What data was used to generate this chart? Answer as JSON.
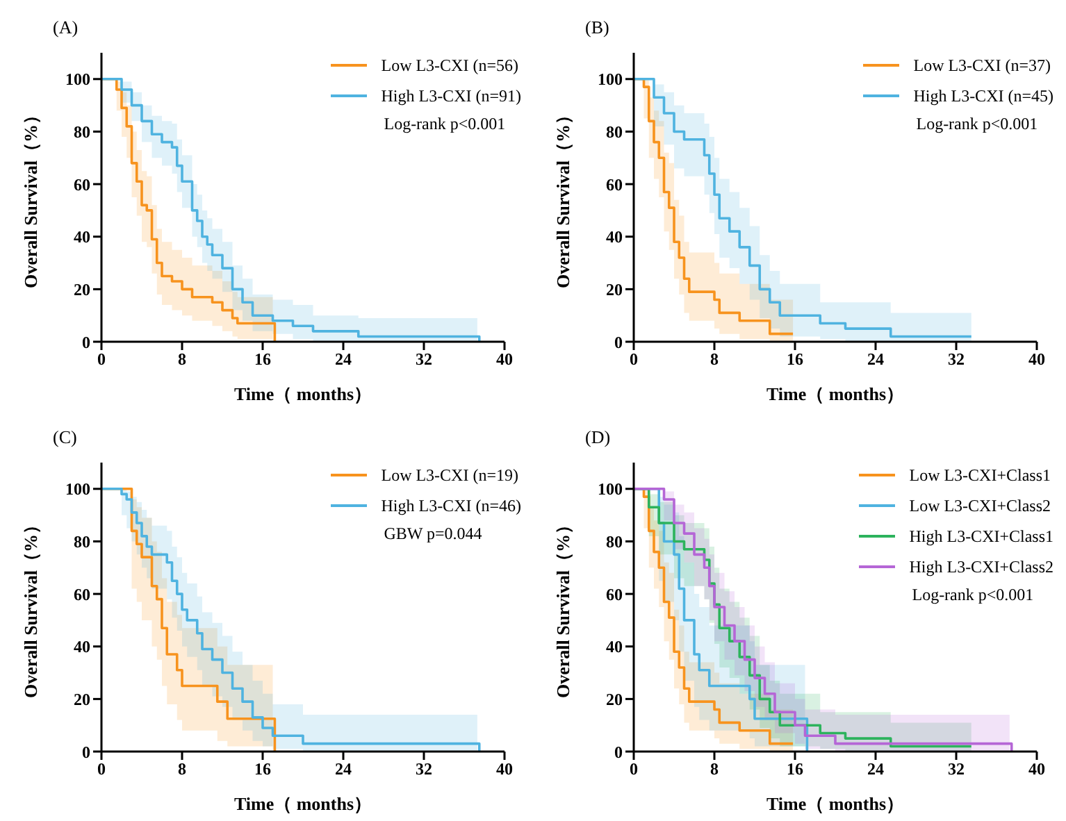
{
  "chart_data": [
    {
      "type": "step",
      "title": "(A)",
      "xlabel": "Time（ months）",
      "ylabel": "Overall Survival（%）",
      "xlim": [
        0,
        40
      ],
      "xticks": [
        0,
        8,
        16,
        24,
        32,
        40
      ],
      "ylim": [
        0,
        110
      ],
      "yticks": [
        0,
        20,
        40,
        60,
        80,
        100
      ],
      "legend": "top right",
      "annotations": [
        "Log-rank p<0.001"
      ],
      "series": [
        {
          "name": "Low L3-CXI (n=56)",
          "color": "#f7931e",
          "x": [
            0,
            1.5,
            2,
            2.5,
            3,
            3.5,
            4,
            4.5,
            5,
            5.5,
            6,
            7,
            8,
            9,
            11,
            12,
            13,
            13.5,
            17,
            17.2
          ],
          "values": [
            100,
            96,
            89,
            82,
            68,
            61,
            52,
            50,
            39,
            30,
            25,
            23,
            20,
            17,
            15,
            12,
            9,
            7,
            7,
            0
          ],
          "lower": [
            100,
            88,
            78,
            70,
            55,
            48,
            38,
            36,
            26,
            18,
            14,
            12,
            10,
            8,
            6,
            4,
            2,
            1,
            1,
            null
          ],
          "upper": [
            100,
            99,
            95,
            90,
            80,
            73,
            65,
            63,
            52,
            43,
            38,
            35,
            32,
            29,
            27,
            23,
            19,
            17,
            17,
            null
          ]
        },
        {
          "name": "High L3-CXI (n=91)",
          "color": "#4fb3e0",
          "x": [
            0,
            1.5,
            2,
            3,
            4,
            5,
            6,
            7,
            7.5,
            8,
            9,
            9.5,
            10,
            10.5,
            11,
            12,
            13,
            14,
            15,
            17,
            19,
            21,
            25.5,
            37.3,
            37.5
          ],
          "values": [
            100,
            100,
            96,
            90,
            84,
            79,
            76,
            74,
            67,
            61,
            50,
            46,
            40,
            37,
            33,
            28,
            20,
            15,
            10,
            8,
            6,
            4,
            2,
            2,
            0
          ],
          "lower": [
            100,
            100,
            91,
            84,
            76,
            70,
            67,
            64,
            57,
            51,
            40,
            36,
            30,
            27,
            24,
            19,
            12,
            8,
            4,
            3,
            1,
            0,
            0,
            0,
            null
          ],
          "upper": [
            100,
            100,
            99,
            95,
            90,
            86,
            84,
            83,
            77,
            71,
            60,
            56,
            50,
            47,
            43,
            38,
            29,
            24,
            18,
            16,
            14,
            10,
            9,
            9,
            null
          ]
        }
      ]
    },
    {
      "type": "step",
      "title": "(B)",
      "xlabel": "Time（ months）",
      "ylabel": "Overall Survival（%）",
      "xlim": [
        0,
        40
      ],
      "xticks": [
        0,
        8,
        16,
        24,
        32,
        40
      ],
      "ylim": [
        0,
        110
      ],
      "yticks": [
        0,
        20,
        40,
        60,
        80,
        100
      ],
      "legend": "top right",
      "annotations": [
        "Log-rank p<0.001"
      ],
      "series": [
        {
          "name": "Low L3-CXI (n=37)",
          "color": "#f7931e",
          "x": [
            0,
            1,
            1.5,
            2,
            2.5,
            3,
            3.5,
            4,
            4.5,
            5,
            5.5,
            8,
            8.5,
            10.5,
            13.5,
            15.8
          ],
          "values": [
            100,
            97,
            84,
            76,
            70,
            57,
            51,
            38,
            32,
            24,
            19,
            16,
            11,
            8,
            3,
            3
          ],
          "lower": [
            100,
            85,
            70,
            62,
            55,
            42,
            35,
            24,
            18,
            11,
            8,
            5,
            3,
            1,
            0,
            0
          ],
          "upper": [
            100,
            100,
            93,
            88,
            84,
            72,
            68,
            54,
            48,
            38,
            34,
            30,
            26,
            22,
            16,
            16
          ]
        },
        {
          "name": "High L3-CXI (n=45)",
          "color": "#4fb3e0",
          "x": [
            0,
            1.5,
            2,
            3,
            4,
            5,
            6.5,
            7,
            7.5,
            8,
            8.5,
            9.5,
            10.5,
            11.5,
            12.5,
            13.5,
            14.5,
            18.5,
            21,
            25.5,
            33.5
          ],
          "values": [
            100,
            100,
            93,
            87,
            80,
            77,
            77,
            71,
            64,
            56,
            47,
            42,
            36,
            29,
            20,
            15,
            10,
            7,
            5,
            2,
            2
          ],
          "lower": [
            100,
            100,
            82,
            75,
            66,
            63,
            63,
            56,
            49,
            41,
            32,
            28,
            22,
            16,
            9,
            5,
            2,
            1,
            0,
            0,
            0
          ],
          "upper": [
            100,
            100,
            98,
            95,
            90,
            87,
            87,
            83,
            78,
            70,
            62,
            57,
            51,
            44,
            33,
            27,
            22,
            15,
            15,
            11,
            11
          ]
        }
      ]
    },
    {
      "type": "step",
      "title": "(C)",
      "xlabel": "Time（ months）",
      "ylabel": "Overall Survival（%）",
      "xlim": [
        0,
        40
      ],
      "xticks": [
        0,
        8,
        16,
        24,
        32,
        40
      ],
      "ylim": [
        0,
        110
      ],
      "yticks": [
        0,
        20,
        40,
        60,
        80,
        100
      ],
      "legend": "top right",
      "annotations": [
        "GBW p=0.044"
      ],
      "series": [
        {
          "name": "Low L3-CXI (n=19)",
          "color": "#f7931e",
          "x": [
            0,
            2.5,
            3,
            3.5,
            4,
            5,
            5.5,
            6,
            6.5,
            7.5,
            8,
            11.5,
            12.5,
            17,
            17.2
          ],
          "values": [
            100,
            100,
            84,
            79,
            74,
            63,
            58,
            47,
            37,
            31,
            25,
            19,
            12.5,
            12.5,
            0
          ],
          "lower": [
            100,
            100,
            62,
            57,
            50,
            40,
            35,
            25,
            18,
            12,
            8,
            4,
            2,
            2,
            null
          ],
          "upper": [
            100,
            100,
            96,
            93,
            89,
            80,
            76,
            66,
            57,
            52,
            47,
            40,
            33,
            33,
            null
          ]
        },
        {
          "name": "High L3-CXI (n=46)",
          "color": "#4fb3e0",
          "x": [
            0,
            2,
            2.5,
            3,
            3.5,
            4,
            4.5,
            5,
            6.5,
            7,
            7.5,
            8,
            8.5,
            9.5,
            10,
            11,
            12,
            13,
            14,
            15,
            16,
            17,
            20,
            37.3,
            37.5
          ],
          "values": [
            100,
            98,
            96,
            91,
            87,
            82,
            78,
            75,
            72,
            65,
            60,
            54,
            50,
            45,
            39,
            35,
            30,
            24,
            19,
            13,
            9,
            6,
            3,
            3,
            0
          ],
          "lower": [
            100,
            90,
            85,
            80,
            75,
            70,
            66,
            62,
            58,
            51,
            46,
            40,
            36,
            31,
            25,
            21,
            17,
            12,
            8,
            4,
            2,
            1,
            0,
            0,
            null
          ],
          "upper": [
            100,
            100,
            99,
            97,
            95,
            92,
            89,
            86,
            84,
            78,
            74,
            68,
            64,
            59,
            53,
            49,
            44,
            38,
            33,
            27,
            22,
            18,
            14,
            14,
            null
          ]
        }
      ]
    },
    {
      "type": "step",
      "title": "(D)",
      "xlabel": "Time（ months）",
      "ylabel": "Overall Survival（%）",
      "xlim": [
        0,
        40
      ],
      "xticks": [
        0,
        8,
        16,
        24,
        32,
        40
      ],
      "ylim": [
        0,
        110
      ],
      "yticks": [
        0,
        20,
        40,
        60,
        80,
        100
      ],
      "legend": "top right",
      "annotations": [
        "Log-rank p<0.001"
      ],
      "series": [
        {
          "name": "Low L3-CXI+Class1",
          "color": "#f7931e",
          "x": [
            0,
            1,
            1.5,
            2,
            2.5,
            3,
            3.5,
            4,
            4.5,
            5,
            5.5,
            8,
            8.5,
            10.5,
            13.5,
            15.8
          ],
          "values": [
            100,
            97,
            84,
            76,
            70,
            57,
            51,
            38,
            32,
            24,
            19,
            16,
            11,
            8,
            3,
            3
          ],
          "lower": [
            100,
            85,
            70,
            62,
            55,
            42,
            35,
            24,
            18,
            11,
            8,
            5,
            3,
            1,
            0,
            0
          ],
          "upper": [
            100,
            100,
            93,
            88,
            84,
            72,
            68,
            54,
            48,
            38,
            34,
            30,
            26,
            22,
            16,
            16
          ]
        },
        {
          "name": "Low L3-CXI+Class2",
          "color": "#4fb3e0",
          "x": [
            0,
            2.5,
            3,
            4,
            4.5,
            5,
            6,
            6.5,
            7.5,
            11.5,
            12,
            17,
            17.2
          ],
          "values": [
            100,
            87,
            80,
            75,
            62,
            50,
            37,
            31,
            25,
            20,
            12.5,
            12.5,
            0
          ],
          "lower": [
            100,
            65,
            57,
            50,
            38,
            27,
            17,
            12,
            8,
            5,
            2,
            2,
            null
          ],
          "upper": [
            100,
            97,
            94,
            91,
            82,
            72,
            60,
            55,
            48,
            42,
            33,
            33,
            null
          ]
        },
        {
          "name": "High L3-CXI+Class1",
          "color": "#2db35d",
          "x": [
            0,
            1.5,
            2.5,
            4,
            5,
            7,
            7.5,
            8,
            8.5,
            9.5,
            10.5,
            11.5,
            12.5,
            13.5,
            14.5,
            18.5,
            21,
            25.5,
            33.5
          ],
          "values": [
            100,
            93,
            87,
            80,
            77,
            73,
            64,
            56,
            47,
            42,
            36,
            29,
            20,
            15,
            10,
            7,
            5,
            2,
            2
          ],
          "lower": [
            100,
            82,
            75,
            66,
            63,
            58,
            49,
            41,
            32,
            28,
            22,
            16,
            9,
            5,
            2,
            1,
            0,
            0,
            0
          ],
          "upper": [
            100,
            98,
            95,
            90,
            87,
            85,
            78,
            70,
            62,
            57,
            51,
            44,
            33,
            27,
            22,
            15,
            15,
            11,
            11
          ]
        },
        {
          "name": "High L3-CXI+Class2",
          "color": "#b566d6",
          "x": [
            0,
            2.5,
            3,
            4,
            5,
            6,
            7,
            7.5,
            8,
            9,
            10,
            11,
            12,
            13,
            14,
            16,
            17,
            20,
            37.3,
            37.5
          ],
          "values": [
            100,
            100,
            96,
            87,
            83,
            75,
            70,
            63,
            55,
            48,
            42,
            35,
            28,
            22,
            15,
            10,
            6,
            3,
            3,
            0
          ],
          "lower": [
            100,
            100,
            88,
            77,
            72,
            63,
            58,
            50,
            42,
            35,
            29,
            23,
            17,
            12,
            7,
            3,
            1,
            0,
            0,
            null
          ],
          "upper": [
            100,
            100,
            99,
            94,
            91,
            85,
            81,
            75,
            68,
            61,
            55,
            48,
            40,
            34,
            26,
            20,
            16,
            14,
            14,
            null
          ]
        }
      ]
    }
  ]
}
